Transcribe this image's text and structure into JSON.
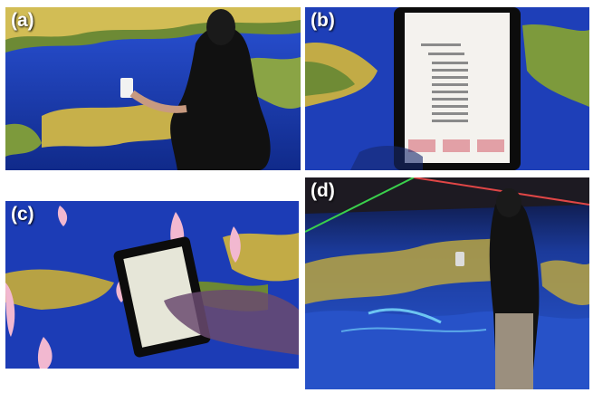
{
  "figure": {
    "panels": [
      {
        "label": "(a)",
        "scene": "person-with-phone-in-front-of-map-wall"
      },
      {
        "label": "(b)",
        "scene": "tablet-closeup-with-file-list"
      },
      {
        "label": "(c)",
        "scene": "hand-touching-tablet-with-pink-markers"
      },
      {
        "label": "(d)",
        "scene": "person-standing-in-immersive-map-room"
      }
    ]
  },
  "colors": {
    "ocean": "#1d3fbf",
    "ocean_dark": "#0f2a8f",
    "land": "#c9b24a",
    "land_dark": "#5d7a2c",
    "marker_pink": "#f2b8d0",
    "silhouette": "#111111"
  }
}
